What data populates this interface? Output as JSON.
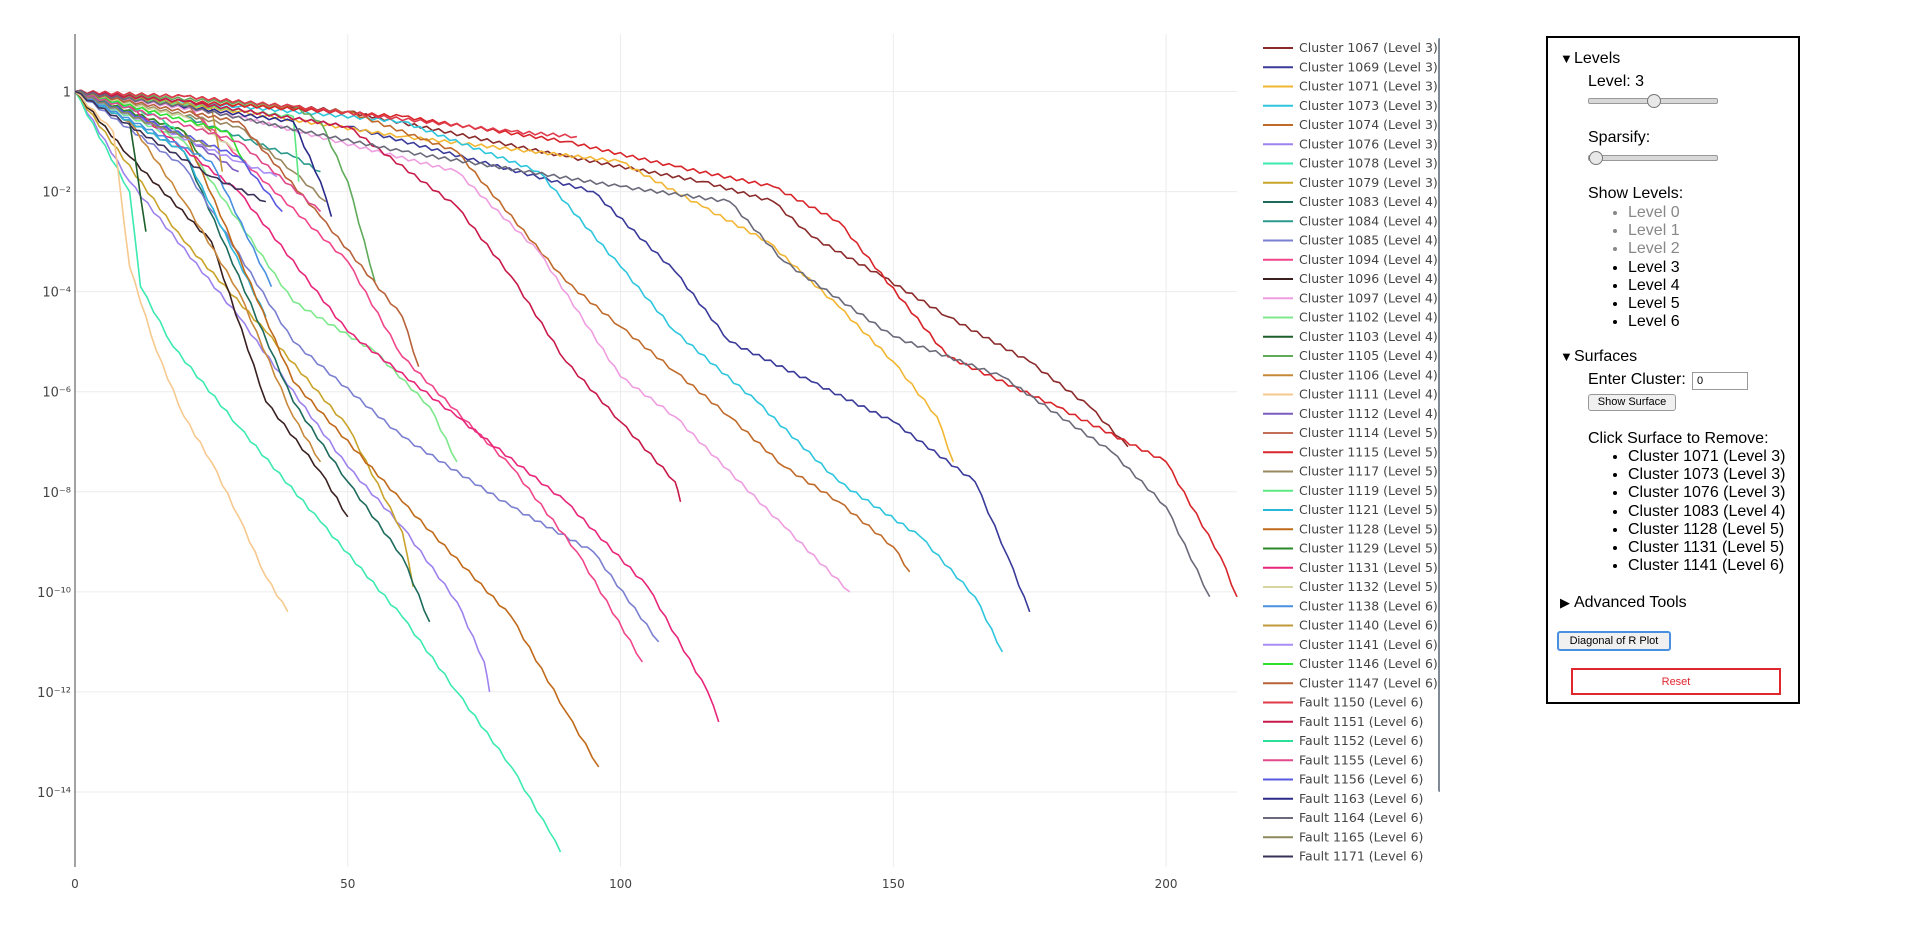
{
  "chart_data": {
    "type": "line",
    "y_scale": "log",
    "xlim": [
      0,
      213
    ],
    "ylim": [
      -15.5,
      1.15
    ],
    "x_ticks": [
      "0",
      "50",
      "100",
      "150",
      "200"
    ],
    "y_ticks": [
      "1",
      "10⁻²",
      "10⁻⁴",
      "10⁻⁶",
      "10⁻⁸",
      "10⁻¹⁰",
      "10⁻¹²",
      "10⁻¹⁴"
    ],
    "grid": true,
    "legend_position": "right",
    "series": [
      {
        "name": "Cluster 1067 (Level 3)",
        "color": "#8b2a2a",
        "x": [
          0,
          20,
          50,
          90,
          115,
          128,
          135,
          148,
          160,
          175,
          186,
          193
        ],
        "log10y": [
          0,
          -0.1,
          -0.4,
          -1.3,
          -1.8,
          -2.2,
          -2.9,
          -3.7,
          -4.5,
          -5.4,
          -6.3,
          -7.1
        ]
      },
      {
        "name": "Cluster 1069 (Level 3)",
        "color": "#3a3a9a",
        "x": [
          0,
          20,
          50,
          95,
          110,
          120,
          135,
          150,
          165,
          171,
          175
        ],
        "log10y": [
          0,
          -0.2,
          -0.7,
          -2,
          -3.6,
          -5,
          -5.8,
          -6.6,
          -7.8,
          -9.3,
          -10.4
        ]
      },
      {
        "name": "Cluster 1071 (Level 3)",
        "color": "#f2b632",
        "x": [
          0,
          30,
          60,
          100,
          115,
          127,
          140,
          150,
          158,
          161
        ],
        "log10y": [
          0,
          -0.4,
          -0.9,
          -1.4,
          -2.3,
          -3,
          -4.3,
          -5.4,
          -6.5,
          -7.4
        ]
      },
      {
        "name": "Cluster 1073 (Level 3)",
        "color": "#2ec6dd",
        "x": [
          0,
          30,
          60,
          85,
          100,
          110,
          125,
          140,
          155,
          165,
          170
        ],
        "log10y": [
          0,
          -0.3,
          -0.6,
          -1.6,
          -3.5,
          -4.8,
          -6.2,
          -7.8,
          -8.9,
          -10.1,
          -11.2
        ]
      },
      {
        "name": "Cluster 1074 (Level 3)",
        "color": "#c06a2a",
        "x": [
          0,
          20,
          50,
          70,
          90,
          100,
          110,
          120,
          130,
          140,
          150,
          153
        ],
        "log10y": [
          0,
          -0.2,
          -0.4,
          -1.2,
          -3.8,
          -4.7,
          -5.6,
          -6.5,
          -7.5,
          -8.2,
          -9.1,
          -9.6
        ]
      },
      {
        "name": "Cluster 1076 (Level 3)",
        "color": "#9d82ee",
        "x": [
          0,
          10,
          30,
          50,
          60,
          70,
          75,
          76
        ],
        "log10y": [
          0,
          -1.8,
          -4.5,
          -7.5,
          -8.7,
          -10.2,
          -11.4,
          -12.0
        ]
      },
      {
        "name": "Cluster 1078 (Level 3)",
        "color": "#3ceab0",
        "x": [
          0,
          10,
          12,
          18,
          30,
          45,
          60,
          70,
          80,
          87,
          89
        ],
        "log10y": [
          0,
          -2,
          -3.9,
          -5.1,
          -6.7,
          -8.6,
          -10.5,
          -12,
          -13.5,
          -14.8,
          -15.2
        ]
      },
      {
        "name": "Cluster 1079 (Level 3)",
        "color": "#c9a42a",
        "x": [
          0,
          20,
          35,
          50,
          60,
          62
        ],
        "log10y": [
          0,
          -3,
          -4.8,
          -6.7,
          -8.8,
          -9.9
        ]
      },
      {
        "name": "Cluster 1083 (Level 4)",
        "color": "#1d6b5c",
        "x": [
          0,
          20,
          40,
          50,
          60,
          65
        ],
        "log10y": [
          0,
          -1.2,
          -6.2,
          -7.8,
          -9.3,
          -10.6
        ]
      },
      {
        "name": "Cluster 1084 (Level 4)",
        "color": "#2c9a8c",
        "x": [
          0,
          20,
          40,
          45
        ],
        "log10y": [
          0,
          -0.5,
          -1.3,
          -1.6
        ]
      },
      {
        "name": "Cluster 1085 (Level 4)",
        "color": "#7a7fcf",
        "x": [
          0,
          20,
          40,
          60,
          80,
          95,
          107
        ],
        "log10y": [
          0,
          -1.5,
          -5,
          -6.9,
          -8.3,
          -9.2,
          -11.0
        ]
      },
      {
        "name": "Cluster 1094 (Level 4)",
        "color": "#f0468a",
        "x": [
          0,
          20,
          30,
          50,
          60,
          80,
          92,
          104
        ],
        "log10y": [
          0,
          -0.2,
          -1.3,
          -3.4,
          -5.3,
          -7.5,
          -9.2,
          -11.4
        ]
      },
      {
        "name": "Cluster 1096 (Level 4)",
        "color": "#3a2020",
        "x": [
          0,
          10,
          25,
          35,
          45,
          50
        ],
        "log10y": [
          0,
          -1.3,
          -3,
          -6.2,
          -7.6,
          -8.5
        ]
      },
      {
        "name": "Cluster 1097 (Level 4)",
        "color": "#ee9ee0",
        "x": [
          0,
          30,
          70,
          85,
          100,
          110,
          130,
          142
        ],
        "log10y": [
          0,
          -0.5,
          -1.6,
          -3.2,
          -5.7,
          -6.5,
          -8.7,
          -10.0
        ]
      },
      {
        "name": "Cluster 1102 (Level 4)",
        "color": "#7ee88c",
        "x": [
          0,
          20,
          40,
          55,
          65,
          70
        ],
        "log10y": [
          0,
          -1,
          -4.2,
          -5.2,
          -6.3,
          -7.4
        ]
      },
      {
        "name": "Cluster 1103 (Level 4)",
        "color": "#1d5e2a",
        "x": [
          0,
          10,
          13
        ],
        "log10y": [
          0,
          -0.6,
          -2.8
        ]
      },
      {
        "name": "Cluster 1105 (Level 4)",
        "color": "#5fab5a",
        "x": [
          0,
          40,
          45,
          50,
          55
        ],
        "log10y": [
          0,
          -0.3,
          -0.6,
          -1.8,
          -3.8
        ]
      },
      {
        "name": "Cluster 1106 (Level 4)",
        "color": "#c8883a",
        "x": [
          0,
          10,
          20,
          30,
          40,
          45
        ],
        "log10y": [
          0,
          -0.6,
          -2.2,
          -4,
          -6.5,
          -7.4
        ]
      },
      {
        "name": "Cluster 1111 (Level 4)",
        "color": "#f6c98f",
        "x": [
          0,
          7,
          10,
          15,
          20,
          25,
          30,
          35,
          39
        ],
        "log10y": [
          0,
          -0.8,
          -3.5,
          -5.2,
          -6.5,
          -7.4,
          -8.5,
          -9.7,
          -10.4
        ]
      },
      {
        "name": "Cluster 1112 (Level 4)",
        "color": "#7d5cc0",
        "x": [
          0,
          20,
          30
        ],
        "log10y": [
          0,
          -0.9,
          -1.6
        ]
      },
      {
        "name": "Cluster 1114 (Level 5)",
        "color": "#c46e58",
        "x": [
          0,
          20,
          25
        ],
        "log10y": [
          0,
          -0.2,
          -0.8
        ]
      },
      {
        "name": "Cluster 1115 (Level 5)",
        "color": "#d8252a",
        "x": [
          0,
          20,
          60,
          90,
          110,
          128,
          140,
          160,
          180,
          200,
          210,
          213
        ],
        "log10y": [
          0,
          -0.2,
          -0.5,
          -1,
          -1.5,
          -1.9,
          -2.6,
          -5.3,
          -6.3,
          -7.4,
          -9.3,
          -10.1
        ]
      },
      {
        "name": "Cluster 1117 (Level 5)",
        "color": "#9a8860",
        "x": [
          0,
          30,
          40,
          46
        ],
        "log10y": [
          0,
          -0.7,
          -1.6,
          -2.2
        ]
      },
      {
        "name": "Cluster 1119 (Level 5)",
        "color": "#5ce882",
        "x": [
          0,
          40,
          41
        ],
        "log10y": [
          0,
          -0.5,
          -1.8
        ]
      },
      {
        "name": "Cluster 1121 (Level 5)",
        "color": "#2cb6d8",
        "x": [
          0,
          20,
          35
        ],
        "log10y": [
          0,
          -1.2,
          -4.5
        ]
      },
      {
        "name": "Cluster 1128 (Level 5)",
        "color": "#c06a1a",
        "x": [
          0,
          20,
          40,
          60,
          80,
          90,
          96
        ],
        "log10y": [
          0,
          -0.8,
          -5.8,
          -8.2,
          -10.5,
          -12.4,
          -13.5
        ]
      },
      {
        "name": "Cluster 1129 (Level 5)",
        "color": "#2a8a2a",
        "x": [
          0,
          20,
          23
        ],
        "log10y": [
          0,
          -0.8,
          -1.3
        ]
      },
      {
        "name": "Cluster 1131 (Level 5)",
        "color": "#e8267a",
        "x": [
          0,
          10,
          30,
          50,
          70,
          90,
          105,
          116,
          118
        ],
        "log10y": [
          0,
          -0.3,
          -2,
          -4.8,
          -6.5,
          -8.2,
          -9.9,
          -12,
          -12.6
        ]
      },
      {
        "name": "Cluster 1132 (Level 5)",
        "color": "#d6d6a0",
        "x": [
          0,
          20,
          30
        ],
        "log10y": [
          0,
          -0.5,
          -1.2
        ]
      },
      {
        "name": "Cluster 1138 (Level 6)",
        "color": "#4a90e0",
        "x": [
          0,
          25,
          36
        ],
        "log10y": [
          0,
          -1.4,
          -3.9
        ]
      },
      {
        "name": "Cluster 1140 (Level 6)",
        "color": "#c09a3a",
        "x": [
          0,
          25,
          27
        ],
        "log10y": [
          0,
          -0.3,
          -1.6
        ]
      },
      {
        "name": "Cluster 1141 (Level 6)",
        "color": "#a98ef5",
        "x": [
          0,
          30,
          37
        ],
        "log10y": [
          0,
          -1.4,
          -1.7
        ]
      },
      {
        "name": "Cluster 1146 (Level 6)",
        "color": "#2ee02e",
        "x": [
          0,
          28,
          31
        ],
        "log10y": [
          0,
          -0.8,
          -1.4
        ]
      },
      {
        "name": "Cluster 1147 (Level 6)",
        "color": "#b8623a",
        "x": [
          0,
          30,
          45,
          60,
          63
        ],
        "log10y": [
          0,
          -0.6,
          -2.5,
          -4.5,
          -5.5
        ]
      },
      {
        "name": "Fault 1150 (Level 6)",
        "color": "#e03a4a",
        "x": [
          0,
          20,
          40,
          80,
          92
        ],
        "log10y": [
          0,
          -0.1,
          -0.3,
          -0.8,
          -0.9
        ]
      },
      {
        "name": "Fault 1151 (Level 6)",
        "color": "#c81a4a",
        "x": [
          0,
          20,
          50,
          70,
          80,
          90,
          100,
          110,
          111
        ],
        "log10y": [
          0,
          -0.2,
          -0.7,
          -2.3,
          -3.7,
          -5.4,
          -6.6,
          -7.8,
          -8.2
        ]
      },
      {
        "name": "Fault 1152 (Level 6)",
        "color": "#2ae098",
        "x": [
          0,
          15,
          20
        ],
        "log10y": [
          0,
          -0.5,
          -0.9
        ]
      },
      {
        "name": "Fault 1155 (Level 6)",
        "color": "#e04a8a",
        "x": [
          0,
          30,
          45
        ],
        "log10y": [
          0,
          -1,
          -2.4
        ]
      },
      {
        "name": "Fault 1156 (Level 6)",
        "color": "#5a5ae0",
        "x": [
          0,
          30,
          38
        ],
        "log10y": [
          0,
          -1.3,
          -2.4
        ]
      },
      {
        "name": "Fault 1163 (Level 6)",
        "color": "#2a2a8a",
        "x": [
          0,
          40,
          45,
          47
        ],
        "log10y": [
          0,
          -0.6,
          -1.8,
          -2.5
        ]
      },
      {
        "name": "Fault 1164 (Level 6)",
        "color": "#6a6a7a",
        "x": [
          0,
          20,
          60,
          100,
          120,
          130,
          150,
          170,
          190,
          200,
          208
        ],
        "log10y": [
          0,
          -0.3,
          -1.2,
          -1.9,
          -2.2,
          -3.4,
          -4.9,
          -5.7,
          -7.2,
          -8.3,
          -10.1
        ]
      },
      {
        "name": "Fault 1165 (Level 6)",
        "color": "#8a8a5a",
        "x": [
          0,
          15,
          25
        ],
        "log10y": [
          0,
          -0.7,
          -1.1
        ]
      },
      {
        "name": "Fault 1171 (Level 6)",
        "color": "#3a3058",
        "x": [
          0,
          25,
          35
        ],
        "log10y": [
          0,
          -1.7,
          -2.2
        ]
      }
    ]
  },
  "panel": {
    "levels_title": "Levels",
    "levels_arrow": "▼",
    "level_label": "Level: 3",
    "level_value": 3,
    "level_max": 6,
    "sparsify_label": "Sparsify:",
    "sparsify_value": 0,
    "show_levels_label": "Show Levels:",
    "show_levels": [
      {
        "label": "Level 0",
        "dim": true
      },
      {
        "label": "Level 1",
        "dim": true
      },
      {
        "label": "Level 2",
        "dim": true
      },
      {
        "label": "Level 3",
        "dim": false
      },
      {
        "label": "Level 4",
        "dim": false
      },
      {
        "label": "Level 5",
        "dim": false
      },
      {
        "label": "Level 6",
        "dim": false
      }
    ],
    "surfaces_title": "Surfaces",
    "surfaces_arrow": "▼",
    "enter_cluster_label": "Enter Cluster:",
    "enter_cluster_value": "0",
    "show_surface_button": "Show Surface",
    "click_remove_label": "Click Surface to Remove:",
    "remove_list": [
      "Cluster 1071 (Level 3)",
      "Cluster 1073 (Level 3)",
      "Cluster 1076 (Level 3)",
      "Cluster 1083 (Level 4)",
      "Cluster 1128 (Level 5)",
      "Cluster 1131 (Level 5)",
      "Cluster 1141 (Level 6)"
    ],
    "advanced_title": "Advanced Tools",
    "advanced_arrow": "▶",
    "diag_button": "Diagonal of R Plot",
    "reset_button": "Reset",
    "reset_color": "#e0262e",
    "diag_focus_color": "#4a90e0"
  }
}
